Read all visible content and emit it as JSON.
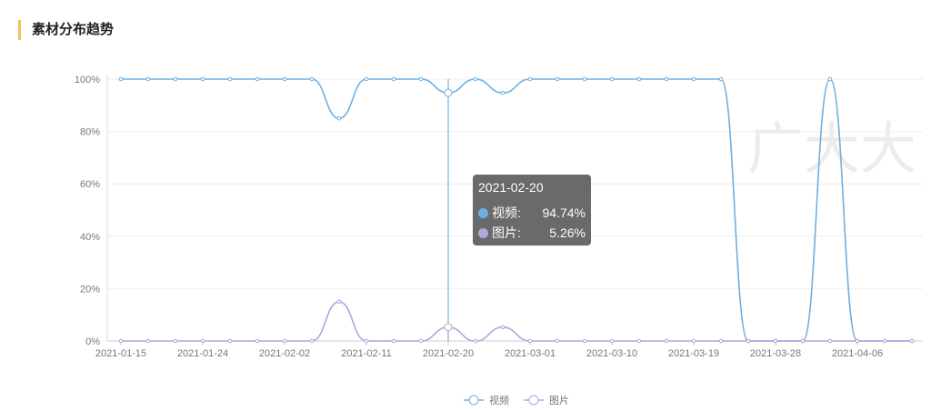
{
  "header": {
    "title": "素材分布趋势"
  },
  "watermark": "广大大",
  "tooltip": {
    "title": "2021-02-20",
    "rows": [
      {
        "label": "视频:",
        "value": "94.74%"
      },
      {
        "label": "图片:",
        "value": "5.26%"
      }
    ]
  },
  "chart_data": {
    "type": "line",
    "categories": [
      "2021-01-15",
      null,
      null,
      "2021-01-24",
      null,
      null,
      "2021-02-02",
      null,
      null,
      "2021-02-11",
      null,
      null,
      "2021-02-20",
      null,
      null,
      "2021-03-01",
      null,
      null,
      "2021-03-10",
      null,
      null,
      "2021-03-19",
      null,
      null,
      "2021-03-28",
      null,
      null,
      "2021-04-06",
      null,
      null
    ],
    "series": [
      {
        "name": "视频",
        "color": "#6eb0e2",
        "values": [
          100,
          100,
          100,
          100,
          100,
          100,
          100,
          100,
          85,
          100,
          100,
          100,
          94.74,
          100,
          94.74,
          100,
          100,
          100,
          100,
          100,
          100,
          100,
          100,
          0,
          0,
          0,
          100,
          0,
          0,
          0
        ]
      },
      {
        "name": "图片",
        "color": "#b3a5db",
        "values": [
          0,
          0,
          0,
          0,
          0,
          0,
          0,
          0,
          15,
          0,
          0,
          0,
          5.26,
          0,
          5.26,
          0,
          0,
          0,
          0,
          0,
          0,
          0,
          0,
          0,
          0,
          0,
          0,
          0,
          0,
          0
        ]
      }
    ],
    "ylim": [
      0,
      100
    ],
    "yticks": [
      {
        "value": 0,
        "label": "0%"
      },
      {
        "value": 20,
        "label": "20%"
      },
      {
        "value": 40,
        "label": "40%"
      },
      {
        "value": 60,
        "label": "60%"
      },
      {
        "value": 80,
        "label": "80%"
      },
      {
        "value": 100,
        "label": "100%"
      }
    ],
    "grid": true,
    "smooth": true,
    "legend": "bottom"
  }
}
